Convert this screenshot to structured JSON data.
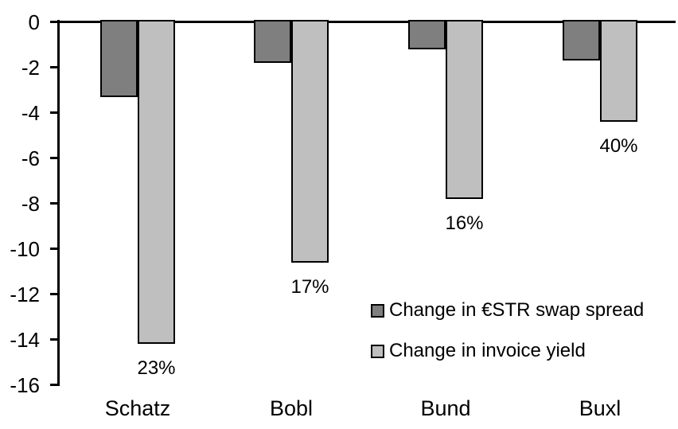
{
  "chart_data": {
    "type": "bar",
    "title": "",
    "orientation": "vertical-negative",
    "categories": [
      "Schatz",
      "Bobl",
      "Bund",
      "Buxl"
    ],
    "series": [
      {
        "name": "Change in €STR swap spread",
        "color": "#7F7F7F",
        "values": [
          -3.3,
          -1.8,
          -1.2,
          -1.7
        ]
      },
      {
        "name": "Change in invoice yield",
        "color": "#BFBFBF",
        "values": [
          -14.2,
          -10.6,
          -7.8,
          -4.4
        ],
        "bar_labels": [
          "23%",
          "17%",
          "16%",
          "40%"
        ]
      }
    ],
    "y_axis": {
      "min": -16,
      "max": 0,
      "tick_step": 2,
      "tick_labels": [
        "0",
        "-2",
        "-4",
        "-6",
        "-8",
        "-10",
        "-12",
        "-14",
        "-16"
      ]
    },
    "x_axis": {
      "labels": [
        "Schatz",
        "Bobl",
        "Bund",
        "Buxl"
      ]
    },
    "grid": false,
    "legend": {
      "position": "inside-center-right",
      "items": [
        {
          "label": "Change in €STR swap spread",
          "color": "#7F7F7F"
        },
        {
          "label": "Change in invoice yield",
          "color": "#BFBFBF"
        }
      ]
    },
    "bar_outline_color": "#000000",
    "axis_color": "#000000",
    "background_color": "#FFFFFF"
  }
}
